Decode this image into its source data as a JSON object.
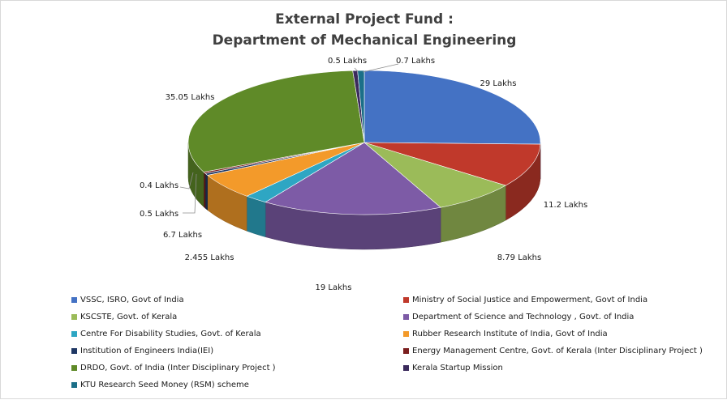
{
  "chart_data": {
    "type": "pie",
    "title": "External Project Fund :",
    "subtitle": "Department of Mechanical Engineering",
    "unit": "Lakhs",
    "slices": [
      {
        "name": "VSSC, ISRO, Govt of India",
        "value": 29,
        "label": "29 Lakhs",
        "color": "#4472c4"
      },
      {
        "name": "Ministry of Social Justice and Empowerment, Govt of India",
        "value": 11.2,
        "label": "11.2 Lakhs",
        "color": "#c0392b"
      },
      {
        "name": "KSCSTE, Govt. of Kerala",
        "value": 8.79,
        "label": "8.79 Lakhs",
        "color": "#9bbb59"
      },
      {
        "name": "Department of Science and Technology , Govt. of India",
        "value": 19,
        "label": "19 Lakhs",
        "color": "#7d5ba6"
      },
      {
        "name": "Centre For Disability Studies, Govt. of Kerala",
        "value": 2.455,
        "label": "2.455 Lakhs",
        "color": "#2ea6c3"
      },
      {
        "name": "Rubber Research Institute of India, Govt of India",
        "value": 6.7,
        "label": "6.7 Lakhs",
        "color": "#f39a2a"
      },
      {
        "name": "Institution of Engineers India(IEI)",
        "value": 0.5,
        "label": "0.5 Lakhs",
        "color": "#1f3864"
      },
      {
        "name": "Energy Management Centre, Govt. of Kerala  (Inter Disciplinary Project )",
        "value": 0.4,
        "label": "0.4 Lakhs",
        "color": "#7b1f1f"
      },
      {
        "name": "DRDO, Govt. of India (Inter Disciplinary Project )",
        "value": 35.05,
        "label": "35.05 Lakhs",
        "color": "#5f8a28"
      },
      {
        "name": "Kerala Startup Mission",
        "value": 0.5,
        "label": "0.5 Lakhs",
        "color": "#3b2a5c"
      },
      {
        "name": "KTU Research Seed Money (RSM) scheme",
        "value": 0.7,
        "label": "0.7 Lakhs",
        "color": "#1b6f88"
      }
    ],
    "legend_position": "bottom"
  }
}
